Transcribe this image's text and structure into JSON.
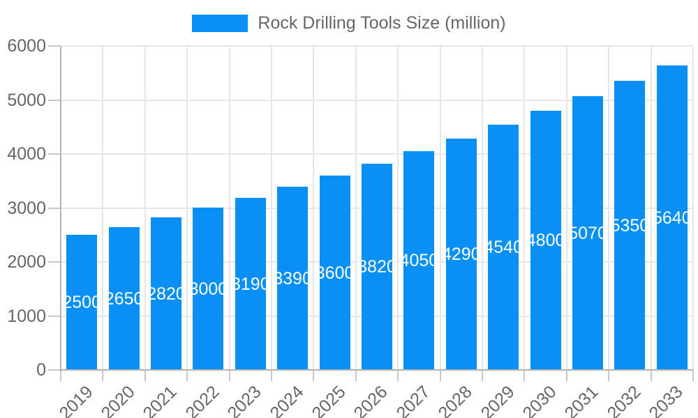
{
  "legend": {
    "label": "Rock Drilling Tools Size (million)"
  },
  "colors": {
    "bar": "#0a90f5",
    "text": "#666666",
    "grid": "#e6e6e6",
    "axis_border": "#b3b3b3",
    "tick_mark": "#c9c9c9",
    "bar_value_label": "#ffffff",
    "background": "#ffffff"
  },
  "chart_data": {
    "type": "bar",
    "title": "",
    "legend_label": "Rock Drilling Tools Size (million)",
    "legend_position": "top",
    "categories": [
      "2019",
      "2020",
      "2021",
      "2022",
      "2023",
      "2024",
      "2025",
      "2026",
      "2027",
      "2028",
      "2029",
      "2030",
      "2031",
      "2032",
      "2033"
    ],
    "values": [
      2500,
      2650,
      2820,
      3000,
      3190,
      3390,
      3600,
      3820,
      4050,
      4290,
      4540,
      4800,
      5070,
      5350,
      5640
    ],
    "value_labels_shown": true,
    "value_label_position": "centered-inside-bar",
    "xlabel": "",
    "ylabel": "",
    "ylim": [
      0,
      6000
    ],
    "yticks": [
      0,
      1000,
      2000,
      3000,
      4000,
      5000,
      6000
    ],
    "x_tick_rotation": -45,
    "grid": true
  }
}
